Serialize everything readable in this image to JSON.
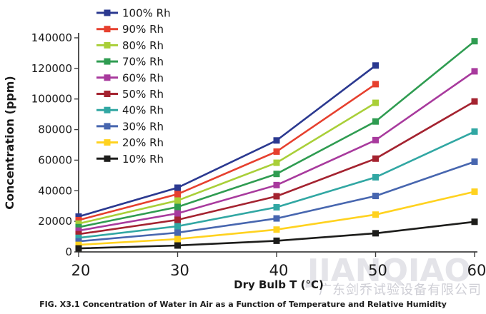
{
  "watermark": {
    "brand": "JIANQIAO",
    "company": "广东剑乔试验设备有限公司"
  },
  "chart_data": {
    "type": "line",
    "title": "",
    "caption": "FIG. X3.1 Concentration of Water in Air as a Function of Temperature and Relative Humidity",
    "xlabel": "Dry Bulb T (°C)",
    "ylabel": "Concentration (ppm)",
    "x": [
      20,
      30,
      40,
      50,
      60
    ],
    "x_tick_labels": [
      "20",
      "30",
      "40",
      "50",
      "60"
    ],
    "y_ticks": [
      0,
      20000,
      40000,
      60000,
      80000,
      100000,
      120000,
      140000
    ],
    "y_tick_labels": [
      "0",
      "20000",
      "40000",
      "60000",
      "80000",
      "100000",
      "120000",
      "140000"
    ],
    "xlim": [
      20,
      60
    ],
    "ylim": [
      0,
      140000
    ],
    "grid": false,
    "legend_position": "top-left",
    "marker": "square",
    "axis_color": "#3f3f3f",
    "tick_label_color": "#1a1a1a",
    "series": [
      {
        "name": "100% Rh",
        "color": "#2b3990",
        "values": [
          23100,
          42000,
          72900,
          121900,
          null
        ]
      },
      {
        "name": "90% Rh",
        "color": "#e6402e",
        "values": [
          20800,
          37800,
          65600,
          109700,
          null
        ]
      },
      {
        "name": "80% Rh",
        "color": "#a9cf38",
        "values": [
          18500,
          33600,
          58300,
          97500,
          null
        ]
      },
      {
        "name": "70% Rh",
        "color": "#2f9c51",
        "values": [
          16200,
          29400,
          51000,
          85300,
          137800
        ]
      },
      {
        "name": "60% Rh",
        "color": "#a83a9d",
        "values": [
          13900,
          25200,
          43700,
          73100,
          118100
        ]
      },
      {
        "name": "50% Rh",
        "color": "#a42330",
        "values": [
          11600,
          21000,
          36400,
          61000,
          98400
        ]
      },
      {
        "name": "40% Rh",
        "color": "#31a7a3",
        "values": [
          9200,
          16800,
          29200,
          48800,
          78700
        ]
      },
      {
        "name": "30% Rh",
        "color": "#4766af",
        "values": [
          6900,
          12600,
          21900,
          36600,
          59000
        ]
      },
      {
        "name": "20% Rh",
        "color": "#ffd21f",
        "values": [
          4600,
          8400,
          14600,
          24400,
          39400
        ]
      },
      {
        "name": "10% Rh",
        "color": "#1d1d1b",
        "values": [
          2300,
          4200,
          7300,
          12200,
          19700
        ]
      }
    ]
  }
}
